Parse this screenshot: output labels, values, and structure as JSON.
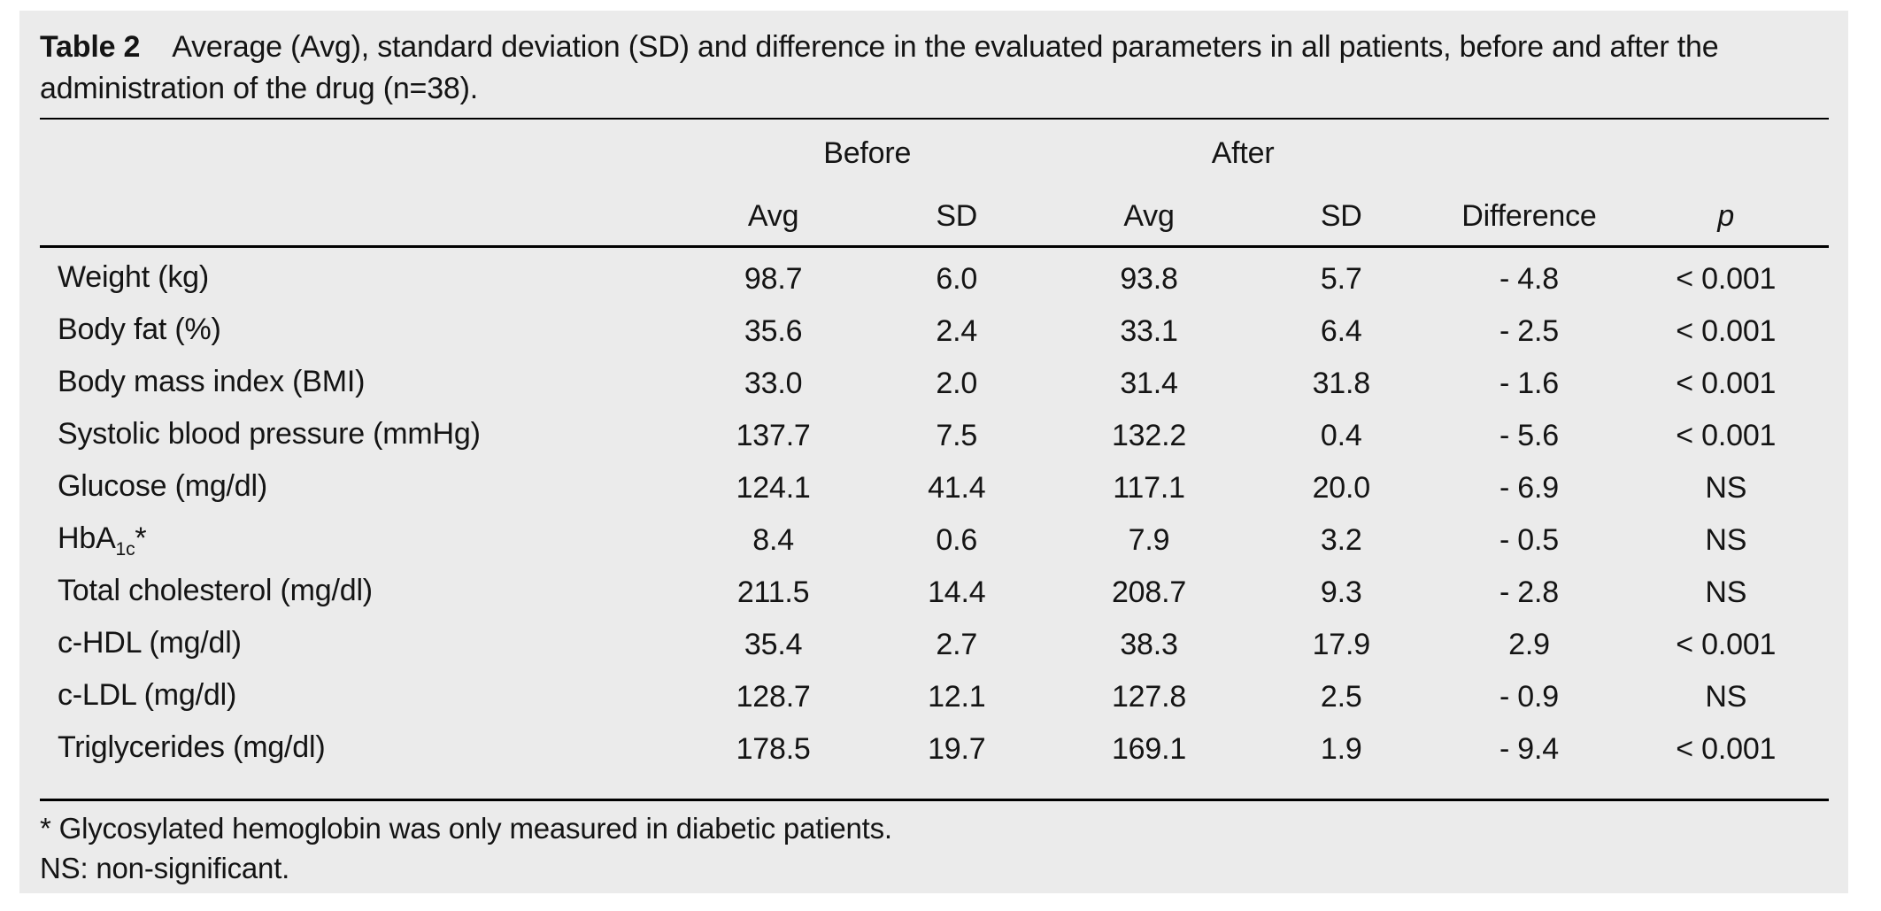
{
  "title": {
    "label": "Table 2",
    "text": "Average (Avg), standard deviation (SD) and difference in the evaluated parameters in all patients, before and after the administration of the drug (n=38)."
  },
  "table": {
    "groups": {
      "before": "Before",
      "after": "After"
    },
    "columns": {
      "avg": "Avg",
      "sd": "SD",
      "difference": "Difference",
      "p": "p"
    },
    "rows": [
      {
        "label": "Weight (kg)",
        "label_sub": "",
        "label_suffix": "",
        "before_avg": "98.7",
        "before_sd": "6.0",
        "after_avg": "93.8",
        "after_sd": "5.7",
        "difference": "- 4.8",
        "p": "< 0.001"
      },
      {
        "label": "Body fat (%)",
        "label_sub": "",
        "label_suffix": "",
        "before_avg": "35.6",
        "before_sd": "2.4",
        "after_avg": "33.1",
        "after_sd": "6.4",
        "difference": "- 2.5",
        "p": "< 0.001"
      },
      {
        "label": "Body mass index (BMI)",
        "label_sub": "",
        "label_suffix": "",
        "before_avg": "33.0",
        "before_sd": "2.0",
        "after_avg": "31.4",
        "after_sd": "31.8",
        "difference": "- 1.6",
        "p": "< 0.001"
      },
      {
        "label": "Systolic blood pressure (mmHg)",
        "label_sub": "",
        "label_suffix": "",
        "before_avg": "137.7",
        "before_sd": "7.5",
        "after_avg": "132.2",
        "after_sd": "0.4",
        "difference": "- 5.6",
        "p": "< 0.001"
      },
      {
        "label": "Glucose (mg/dl)",
        "label_sub": "",
        "label_suffix": "",
        "before_avg": "124.1",
        "before_sd": "41.4",
        "after_avg": "117.1",
        "after_sd": "20.0",
        "difference": "- 6.9",
        "p": "NS"
      },
      {
        "label": "HbA",
        "label_sub": "1c",
        "label_suffix": "*",
        "before_avg": "8.4",
        "before_sd": "0.6",
        "after_avg": "7.9",
        "after_sd": "3.2",
        "difference": "- 0.5",
        "p": "NS"
      },
      {
        "label": "Total cholesterol (mg/dl)",
        "label_sub": "",
        "label_suffix": "",
        "before_avg": "211.5",
        "before_sd": "14.4",
        "after_avg": "208.7",
        "after_sd": "9.3",
        "difference": "- 2.8",
        "p": "NS"
      },
      {
        "label": "c-HDL (mg/dl)",
        "label_sub": "",
        "label_suffix": "",
        "before_avg": "35.4",
        "before_sd": "2.7",
        "after_avg": "38.3",
        "after_sd": "17.9",
        "difference": "2.9",
        "p": "< 0.001"
      },
      {
        "label": "c-LDL (mg/dl)",
        "label_sub": "",
        "label_suffix": "",
        "before_avg": "128.7",
        "before_sd": "12.1",
        "after_avg": "127.8",
        "after_sd": "2.5",
        "difference": "- 0.9",
        "p": "NS"
      },
      {
        "label": "Triglycerides (mg/dl)",
        "label_sub": "",
        "label_suffix": "",
        "before_avg": "178.5",
        "before_sd": "19.7",
        "after_avg": "169.1",
        "after_sd": "1.9",
        "difference": "- 9.4",
        "p": "< 0.001"
      }
    ]
  },
  "footnotes": {
    "asterisk": "* Glycosylated hemoglobin was only measured in diabetic patients.",
    "ns": "NS: non-significant."
  },
  "colors": {
    "panel_background": "#ebebeb",
    "page_background": "#ffffff",
    "text": "#141414",
    "rule": "#000000"
  }
}
